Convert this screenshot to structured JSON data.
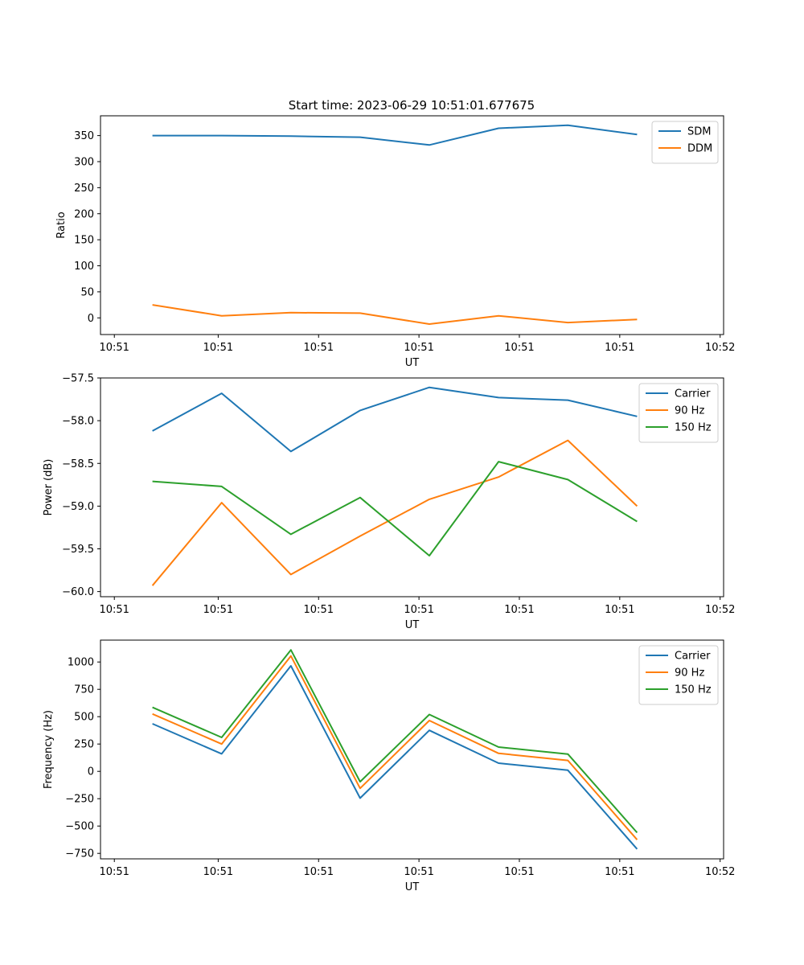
{
  "figure_title": "Start time: 2023-06-29 10:51:01.677675",
  "colors": {
    "blue": "#1f77b4",
    "orange": "#ff7f0e",
    "green": "#2ca02c"
  },
  "chart_data": [
    {
      "type": "line",
      "title": "Start time: 2023-06-29 10:51:01.677675",
      "xlabel": "UT",
      "ylabel": "Ratio",
      "x_tick_labels": [
        "10:51",
        "10:51",
        "10:51",
        "10:51",
        "10:51",
        "10:51",
        "10:52"
      ],
      "xlim": [
        0,
        18
      ],
      "ylim": [
        -32,
        388
      ],
      "y_ticks": [
        0,
        50,
        100,
        150,
        200,
        250,
        300,
        350
      ],
      "x": [
        1.5,
        3.5,
        5.5,
        7.5,
        9.5,
        11.5,
        13.5,
        15.5
      ],
      "legend": "top-right",
      "grid": false,
      "series": [
        {
          "name": "SDM",
          "color": "#1f77b4",
          "values": [
            350,
            350,
            349,
            347,
            332,
            364,
            370,
            352
          ]
        },
        {
          "name": "DDM",
          "color": "#ff7f0e",
          "values": [
            25,
            4,
            10,
            9,
            -12,
            4,
            -9,
            -3
          ]
        }
      ]
    },
    {
      "type": "line",
      "title": "",
      "xlabel": "UT",
      "ylabel": "Power (dB)",
      "x_tick_labels": [
        "10:51",
        "10:51",
        "10:51",
        "10:51",
        "10:51",
        "10:51",
        "10:52"
      ],
      "xlim": [
        0,
        18
      ],
      "ylim": [
        -60.06,
        -57.5
      ],
      "y_ticks": [
        -60.0,
        -59.5,
        -59.0,
        -58.5,
        -58.0,
        -57.5
      ],
      "y_tick_labels": [
        "−60.0",
        "−59.5",
        "−59.0",
        "−58.5",
        "−58.0",
        "−57.5"
      ],
      "x": [
        1.5,
        3.5,
        5.5,
        7.5,
        9.5,
        11.5,
        13.5,
        15.5
      ],
      "legend": "top-right",
      "grid": false,
      "series": [
        {
          "name": "Carrier",
          "color": "#1f77b4",
          "values": [
            -58.12,
            -57.68,
            -58.36,
            -57.88,
            -57.61,
            -57.73,
            -57.76,
            -57.95
          ]
        },
        {
          "name": "90 Hz",
          "color": "#ff7f0e",
          "values": [
            -59.93,
            -58.96,
            -59.8,
            -59.35,
            -58.92,
            -58.66,
            -58.23,
            -59.0
          ]
        },
        {
          "name": "150 Hz",
          "color": "#2ca02c",
          "values": [
            -58.71,
            -58.77,
            -59.33,
            -58.9,
            -59.58,
            -58.48,
            -58.69,
            -59.18
          ]
        }
      ]
    },
    {
      "type": "line",
      "title": "",
      "xlabel": "UT",
      "ylabel": "Frequency (Hz)",
      "x_tick_labels": [
        "10:51",
        "10:51",
        "10:51",
        "10:51",
        "10:51",
        "10:51",
        "10:52"
      ],
      "xlim": [
        0,
        18
      ],
      "ylim": [
        -800,
        1200
      ],
      "y_ticks": [
        -750,
        -500,
        -250,
        0,
        250,
        500,
        750,
        1000
      ],
      "y_tick_labels": [
        "−750",
        "−500",
        "−250",
        "0",
        "250",
        "500",
        "750",
        "1000"
      ],
      "x": [
        1.5,
        3.5,
        5.5,
        7.5,
        9.5,
        11.5,
        13.5,
        15.5
      ],
      "legend": "top-right",
      "grid": false,
      "series": [
        {
          "name": "Carrier",
          "color": "#1f77b4",
          "values": [
            435,
            160,
            965,
            -245,
            375,
            75,
            10,
            -710
          ]
        },
        {
          "name": "90 Hz",
          "color": "#ff7f0e",
          "values": [
            525,
            250,
            1055,
            -155,
            465,
            165,
            100,
            -625
          ]
        },
        {
          "name": "150 Hz",
          "color": "#2ca02c",
          "values": [
            585,
            310,
            1110,
            -95,
            520,
            222,
            158,
            -560
          ]
        }
      ]
    }
  ]
}
